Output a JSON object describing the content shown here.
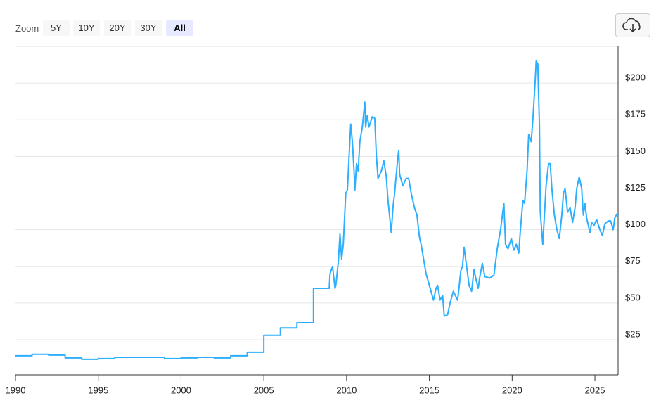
{
  "toolbar": {
    "zoom_label": "Zoom",
    "buttons": [
      "5Y",
      "10Y",
      "20Y",
      "30Y",
      "All"
    ]
  },
  "chart_data": {
    "type": "line",
    "color": "#2caffe",
    "x": [
      1990,
      1991,
      1991,
      1992,
      1992,
      1993,
      1993,
      1994,
      1994,
      1995,
      1995,
      1996,
      1996,
      1999,
      1999,
      2000,
      2000,
      2001,
      2001,
      2002,
      2002,
      2003,
      2003,
      2004,
      2004,
      2005,
      2005,
      2006,
      2006,
      2007,
      2007,
      2008,
      2008,
      2008.95,
      2009.0,
      2009.15,
      2009.3,
      2009.35,
      2009.5,
      2009.6,
      2009.7,
      2009.8,
      2009.95,
      2010.05,
      2010.15,
      2010.25,
      2010.35,
      2010.45,
      2010.5,
      2010.6,
      2010.7,
      2010.8,
      2010.95,
      2011.1,
      2011.15,
      2011.25,
      2011.35,
      2011.55,
      2011.7,
      2011.8,
      2011.9,
      2012.1,
      2012.25,
      2012.4,
      2012.5,
      2012.7,
      2012.8,
      2012.9,
      2013.1,
      2013.15,
      2013.2,
      2013.4,
      2013.6,
      2013.75,
      2013.9,
      2014.1,
      2014.25,
      2014.4,
      2014.5,
      2014.65,
      2014.8,
      2015.0,
      2015.25,
      2015.4,
      2015.5,
      2015.65,
      2015.8,
      2015.9,
      2016.1,
      2016.25,
      2016.45,
      2016.7,
      2016.75,
      2016.9,
      2017.0,
      2017.1,
      2017.25,
      2017.4,
      2017.55,
      2017.7,
      2017.8,
      2017.95,
      2018.05,
      2018.2,
      2018.35,
      2018.65,
      2018.9,
      2019.1,
      2019.3,
      2019.5,
      2019.6,
      2019.75,
      2019.95,
      2020.1,
      2020.25,
      2020.4,
      2020.5,
      2020.65,
      2020.75,
      2020.9,
      2021.0,
      2021.15,
      2021.25,
      2021.4,
      2021.45,
      2021.55,
      2021.65,
      2021.7,
      2021.85,
      2021.95,
      2022.05,
      2022.2,
      2022.3,
      2022.4,
      2022.55,
      2022.7,
      2022.85,
      2023.0,
      2023.1,
      2023.2,
      2023.35,
      2023.5,
      2023.65,
      2023.8,
      2023.9,
      2024.05,
      2024.2,
      2024.3,
      2024.4,
      2024.5,
      2024.7,
      2024.8,
      2024.95,
      2025.1,
      2025.3,
      2025.45,
      2025.6,
      2025.8,
      2025.95,
      2026.1,
      2026.2,
      2026.35
    ],
    "values": [
      14,
      14,
      15,
      15,
      14.5,
      14.5,
      12.6,
      12.6,
      11.6,
      11.6,
      12.1,
      12.1,
      13,
      13,
      12.1,
      12.1,
      12.6,
      12.6,
      13,
      13,
      12.6,
      12.6,
      14,
      14,
      16.4,
      16.4,
      28,
      28,
      33,
      33,
      36.5,
      36.5,
      60,
      60,
      70,
      75,
      60,
      62,
      78,
      97,
      80,
      90,
      125,
      127,
      150,
      172,
      160,
      140,
      127,
      145,
      140,
      160,
      170,
      187,
      170,
      178,
      170,
      177,
      176,
      150,
      135,
      140,
      147,
      136,
      120,
      98,
      115,
      125,
      150,
      154,
      138,
      130,
      135,
      135,
      125,
      115,
      110,
      95,
      90,
      80,
      70,
      62,
      52,
      60,
      62,
      52,
      55,
      41,
      42,
      50,
      58,
      52,
      56,
      72,
      75,
      88,
      75,
      62,
      58,
      73,
      67,
      60,
      68,
      77,
      68,
      67,
      69,
      87,
      100,
      118,
      90,
      87,
      94,
      86,
      90,
      84,
      100,
      120,
      118,
      140,
      165,
      160,
      175,
      203,
      215,
      213,
      170,
      112,
      90,
      110,
      130,
      145,
      145,
      128,
      110,
      100,
      94,
      110,
      125,
      128,
      112,
      115,
      105,
      115,
      128,
      136,
      128,
      110,
      118,
      108,
      98,
      105,
      103,
      107,
      100,
      96,
      104,
      106,
      106,
      100,
      108,
      111
    ],
    "xlim": [
      1990,
      2026.4
    ],
    "xticks": [
      1990,
      1995,
      2000,
      2005,
      2010,
      2015,
      2020,
      2025
    ],
    "ylim": [
      1,
      225
    ],
    "yticks": [
      {
        "value": 25,
        "label": "$25"
      },
      {
        "value": 50,
        "label": "$50"
      },
      {
        "value": 75,
        "label": "$75"
      },
      {
        "value": 100,
        "label": "$100"
      },
      {
        "value": 125,
        "label": "$125"
      },
      {
        "value": 150,
        "label": "$150"
      },
      {
        "value": 175,
        "label": "$175"
      },
      {
        "value": 200,
        "label": "$200"
      }
    ],
    "grid": true
  }
}
